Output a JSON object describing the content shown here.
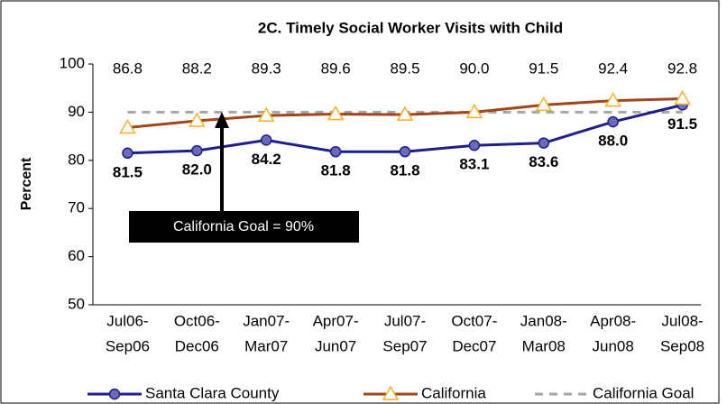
{
  "chart_data": {
    "type": "line",
    "title": "2C. Timely Social Worker Visits with Child",
    "y_label": "Percent",
    "categories": [
      [
        "Jul06-",
        "Sep06"
      ],
      [
        "Oct06-",
        "Dec06"
      ],
      [
        "Jan07-",
        "Mar07"
      ],
      [
        "Apr07-",
        "Jun07"
      ],
      [
        "Jul07-",
        "Sep07"
      ],
      [
        "Oct07-",
        "Dec07"
      ],
      [
        "Jan08-",
        "Mar08"
      ],
      [
        "Apr08-",
        "Jun08"
      ],
      [
        "Jul08-",
        "Sep08"
      ]
    ],
    "series": [
      {
        "name": "Santa Clara County",
        "color": "#1f1f8c",
        "marker": "circle",
        "values": [
          81.5,
          82.0,
          84.2,
          81.8,
          81.8,
          83.1,
          83.6,
          88.0,
          91.5
        ],
        "value_labels": [
          "81.5",
          "82.0",
          "84.2",
          "81.8",
          "81.8",
          "83.1",
          "83.6",
          "88.0",
          "91.5"
        ]
      },
      {
        "name": "California",
        "color": "#a0461a",
        "marker": "triangle",
        "values": [
          86.8,
          88.2,
          89.3,
          89.6,
          89.5,
          90.0,
          91.5,
          92.4,
          92.8
        ],
        "value_labels": [
          "86.8",
          "88.2",
          "89.3",
          "89.6",
          "89.5",
          "90.0",
          "91.5",
          "92.4",
          "92.8"
        ]
      },
      {
        "name": "California Goal",
        "color": "#a6a6a6",
        "dashed": true,
        "values": [
          90,
          90,
          90,
          90,
          90,
          90,
          90,
          90,
          90
        ]
      }
    ],
    "annotation": "California Goal = 90%",
    "ylim": [
      50,
      100
    ],
    "yticks": [
      50,
      60,
      70,
      80,
      90,
      100
    ]
  }
}
